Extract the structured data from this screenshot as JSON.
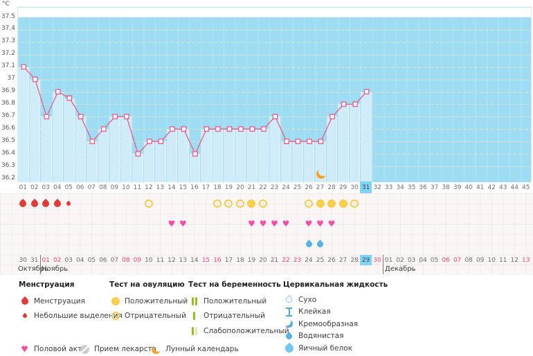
{
  "chart_data": {
    "type": "line",
    "title": "",
    "ylabel": "°C",
    "ylim": [
      36.2,
      37.5
    ],
    "y_ticks": [
      "37.5",
      "37.4",
      "37.3",
      "37.2",
      "37.1",
      "37",
      "36.9",
      "36.8",
      "36.7",
      "36.6",
      "36.5",
      "36.4",
      "36.3",
      "36.2"
    ],
    "days_total": 45,
    "x_days": [
      1,
      2,
      3,
      4,
      5,
      6,
      7,
      8,
      9,
      10,
      11,
      12,
      13,
      14,
      15,
      16,
      17,
      18,
      19,
      20,
      21,
      22,
      23,
      24,
      25,
      26,
      27,
      28,
      29,
      30,
      31
    ],
    "temperatures_c": [
      37.1,
      37.0,
      36.7,
      36.9,
      36.85,
      36.7,
      36.5,
      36.6,
      36.7,
      36.7,
      36.4,
      36.5,
      36.5,
      36.6,
      36.6,
      36.4,
      36.6,
      36.6,
      36.6,
      36.6,
      36.6,
      36.6,
      36.7,
      36.5,
      36.5,
      36.5,
      36.5,
      36.7,
      36.8,
      36.8,
      36.9
    ],
    "today_cycle_day": 31,
    "moon_icon_day": 27,
    "grid": "dotted-horizontal-0.1",
    "legend_position": "bottom"
  },
  "cycle_days": [
    "01",
    "02",
    "03",
    "04",
    "05",
    "06",
    "07",
    "08",
    "09",
    "10",
    "11",
    "12",
    "13",
    "14",
    "15",
    "16",
    "17",
    "18",
    "19",
    "20",
    "21",
    "22",
    "23",
    "24",
    "25",
    "26",
    "27",
    "28",
    "29",
    "30",
    "31",
    "32",
    "33",
    "34",
    "35",
    "36",
    "37",
    "38",
    "39",
    "40",
    "41",
    "42",
    "43",
    "44",
    "45"
  ],
  "symptoms": {
    "menstruation_heavy_days": [
      1,
      2,
      3,
      4
    ],
    "menstruation_spotting_days": [
      5
    ],
    "ovulation_test_negative_days": [
      12,
      18,
      19,
      20,
      22,
      26,
      30
    ],
    "ovulation_test_positive_days": [
      21,
      27,
      28,
      29
    ],
    "intercourse_days": [
      14,
      15,
      21,
      22,
      23,
      24,
      26,
      27,
      28
    ],
    "cervical_watery_days": [
      26,
      27
    ]
  },
  "calendar": {
    "dates": [
      "30",
      "31",
      "01",
      "02",
      "03",
      "04",
      "05",
      "06",
      "07",
      "08",
      "09",
      "10",
      "11",
      "12",
      "13",
      "14",
      "15",
      "16",
      "17",
      "18",
      "19",
      "20",
      "21",
      "22",
      "23",
      "24",
      "25",
      "26",
      "27",
      "28",
      "29",
      "30",
      "01",
      "02",
      "03",
      "04",
      "05",
      "06",
      "07",
      "08",
      "09",
      "10",
      "11",
      "12",
      "13"
    ],
    "red_indices": [
      2,
      3,
      9,
      10,
      16,
      17,
      23,
      24,
      31,
      37,
      38,
      44
    ],
    "today_index": 30,
    "dividers_after_index": [
      1,
      31
    ],
    "month_labels": [
      {
        "label": "Октябрь",
        "x": 26
      },
      {
        "label": "Ноябрь",
        "x": 60
      },
      {
        "label": "Декабрь",
        "x": 556
      }
    ]
  },
  "legend": {
    "groups": [
      {
        "header": "Менструация",
        "items": [
          {
            "icon": "drop-red-large",
            "label": "Менструация"
          },
          {
            "icon": "drop-red-small",
            "label": "Небольшие выделения"
          }
        ]
      },
      {
        "header": "Тест на овуляцию",
        "items": [
          {
            "icon": "circle-yellow-filled",
            "label": "Положительный"
          },
          {
            "icon": "circle-yellow-outline",
            "label": "Отрицательный"
          }
        ]
      },
      {
        "header": "Тест на беременность",
        "items": [
          {
            "icon": "bars-green-two",
            "label": "Положительный"
          },
          {
            "icon": "bar-green-one",
            "label": "Отрицательный"
          },
          {
            "icon": "bars-green-weak",
            "label": "Слабоположительный"
          }
        ]
      },
      {
        "header": "Цервикальная жидкость",
        "items": [
          {
            "icon": "drop-blue-outline",
            "label": "Сухо"
          },
          {
            "icon": "ibeam-blue",
            "label": "Клейкая"
          },
          {
            "icon": "crescent-blue",
            "label": "Кремообразная"
          },
          {
            "icon": "drop-blue-solid",
            "label": "Водянистая"
          },
          {
            "icon": "drop-lightblue-solid",
            "label": "Яичный белок"
          }
        ]
      }
    ],
    "footer_items": [
      {
        "icon": "heart-pink",
        "label": "Половой акт"
      },
      {
        "icon": "pill-gray",
        "label": "Прием лекарств"
      },
      {
        "icon": "moon-orange",
        "label": "Лунный календарь"
      }
    ]
  },
  "colors": {
    "sky_blue": "#9edcf4",
    "column_fill": "#d0ecfa",
    "line_pink": "#ef5a85",
    "today_highlight": "#7fd3f3",
    "weekend_red": "#f5476f",
    "menses_red": "#e23a36",
    "heart_pink": "#fb4ba3",
    "test_yellow": "#fbd04a",
    "cervical_blue": "#58b0e6",
    "moon_orange": "#f6a426",
    "pregnancy_green": "#93c01f"
  }
}
